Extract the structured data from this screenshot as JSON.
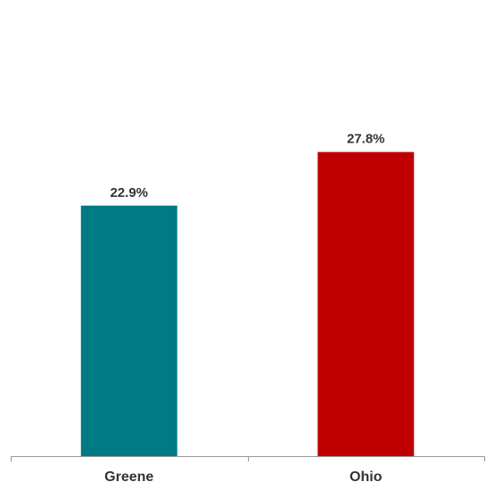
{
  "chart_data": {
    "type": "bar",
    "categories": [
      "Greene",
      "Ohio"
    ],
    "values": [
      22.9,
      27.8
    ],
    "value_labels": [
      "22.9%",
      "27.8%"
    ],
    "colors": [
      "#007a84",
      "#c00000"
    ],
    "ylim": [
      0,
      35
    ],
    "grid": false,
    "legend": "none"
  }
}
